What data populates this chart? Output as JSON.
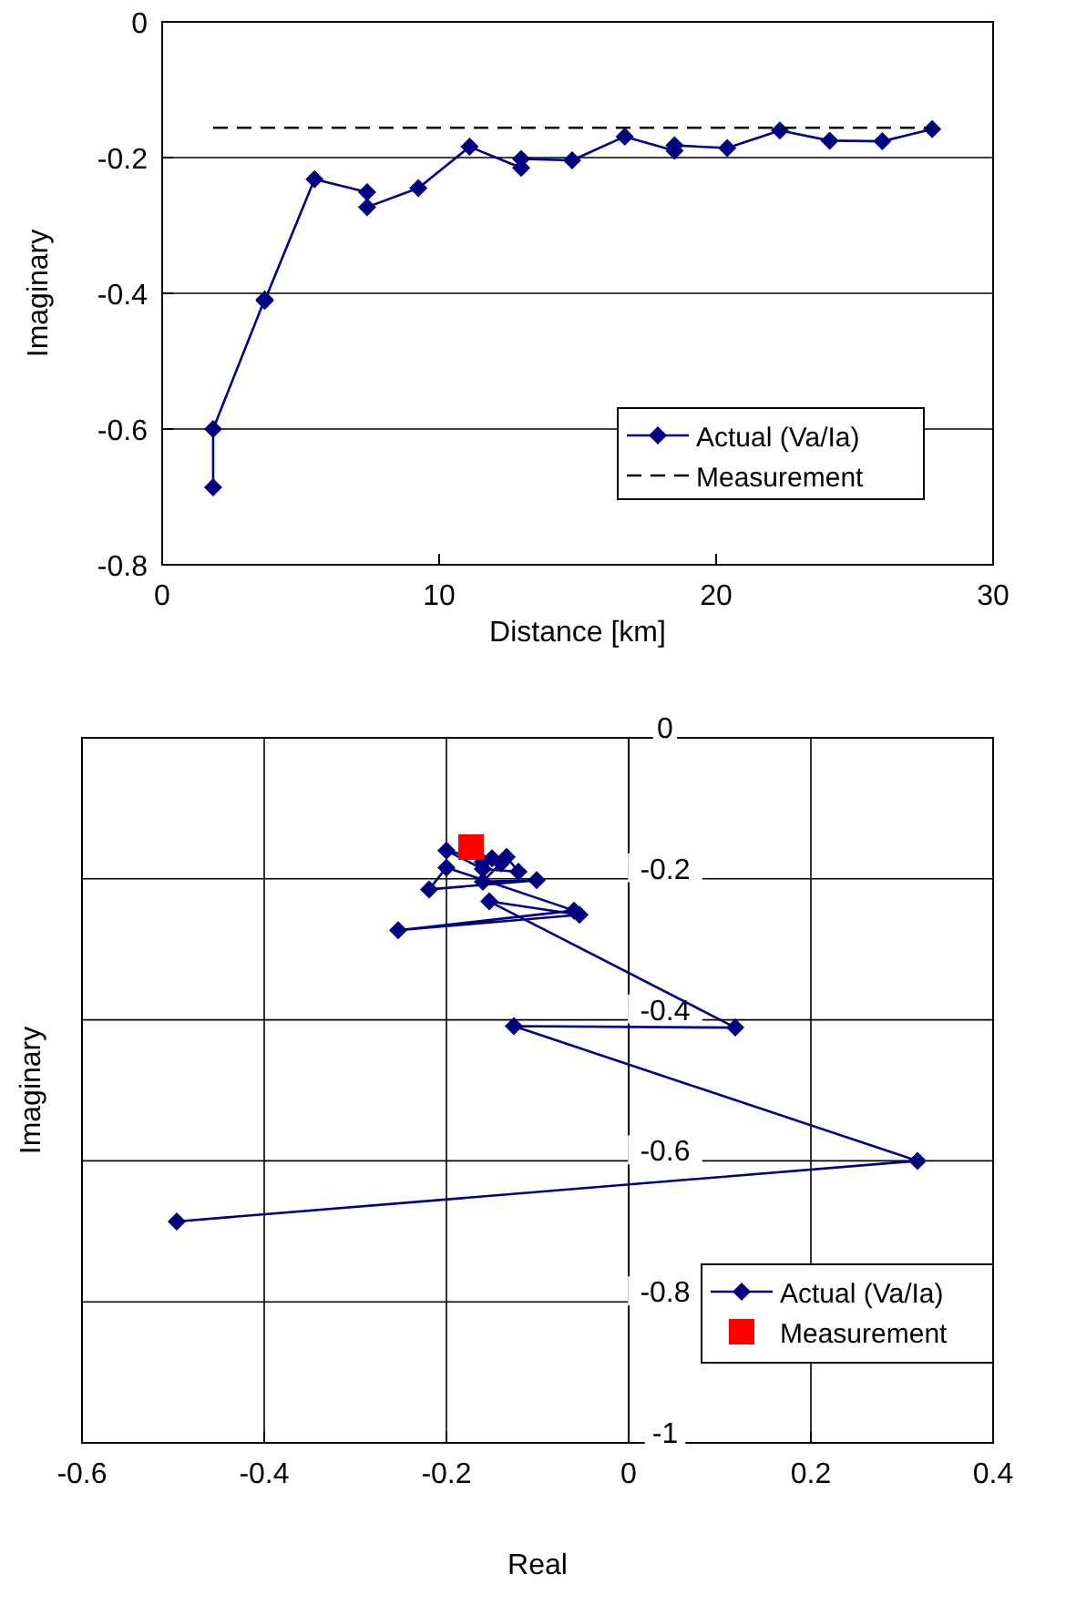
{
  "chart_data": [
    {
      "type": "line",
      "xlabel": "Distance [km]",
      "ylabel": "Imaginary",
      "xlim": [
        0,
        30
      ],
      "xticks": [
        0,
        10,
        20,
        30
      ],
      "ylim": [
        -0.8,
        0
      ],
      "yticks": [
        0,
        -0.2,
        -0.4,
        -0.6,
        -0.8
      ],
      "grid": "y",
      "legend": "bottom right",
      "series": [
        {
          "name": "Actual (Va/Ia)",
          "color": "#000080",
          "marker": "diamond",
          "line_style": "solid",
          "x": [
            1.84,
            1.84,
            3.7,
            3.7,
            5.5,
            7.4,
            7.4,
            9.25,
            11.1,
            12.96,
            12.96,
            14.8,
            16.7,
            18.5,
            18.5,
            20.4,
            22.3,
            24.1,
            26.0,
            27.8
          ],
          "values": [
            -0.686,
            -0.6,
            -0.409,
            -0.411,
            -0.232,
            -0.251,
            -0.273,
            -0.245,
            -0.184,
            -0.215,
            -0.202,
            -0.204,
            -0.169,
            -0.19,
            -0.182,
            -0.186,
            -0.16,
            -0.175,
            -0.176,
            -0.158
          ]
        },
        {
          "name": "Measurement",
          "color": "#000000",
          "marker": "none",
          "line_style": "dashed",
          "x": [
            1.84,
            27.8
          ],
          "values": [
            -0.156,
            -0.156
          ]
        }
      ]
    },
    {
      "type": "line",
      "xlabel": "Real",
      "ylabel": "Imaginary",
      "xlim": [
        -0.6,
        0.4
      ],
      "xticks": [
        -0.6,
        -0.4,
        -0.2,
        0,
        0.2,
        0.4
      ],
      "ylim": [
        -1,
        0
      ],
      "yticks": [
        0,
        -0.2,
        -0.4,
        -0.6,
        -0.8,
        -1
      ],
      "grid": true,
      "legend": "bottom right",
      "series": [
        {
          "name": "Actual (Va/Ia)",
          "color": "#000080",
          "marker": "diamond",
          "line_style": "solid",
          "x": [
            -0.496,
            0.317,
            -0.126,
            0.117,
            -0.153,
            -0.054,
            -0.253,
            -0.06,
            -0.2,
            -0.219,
            -0.101,
            -0.16,
            -0.134,
            -0.121,
            -0.16,
            -0.2,
            -0.14,
            -0.15,
            -0.16
          ],
          "values": [
            -0.686,
            -0.6,
            -0.409,
            -0.411,
            -0.232,
            -0.251,
            -0.273,
            -0.245,
            -0.184,
            -0.215,
            -0.202,
            -0.204,
            -0.169,
            -0.19,
            -0.186,
            -0.16,
            -0.178,
            -0.171,
            -0.176
          ]
        },
        {
          "name": "Measurement",
          "type": "scatter",
          "color": "#ff0000",
          "marker": "square",
          "x": [
            -0.173
          ],
          "values": [
            -0.155
          ]
        }
      ]
    }
  ]
}
